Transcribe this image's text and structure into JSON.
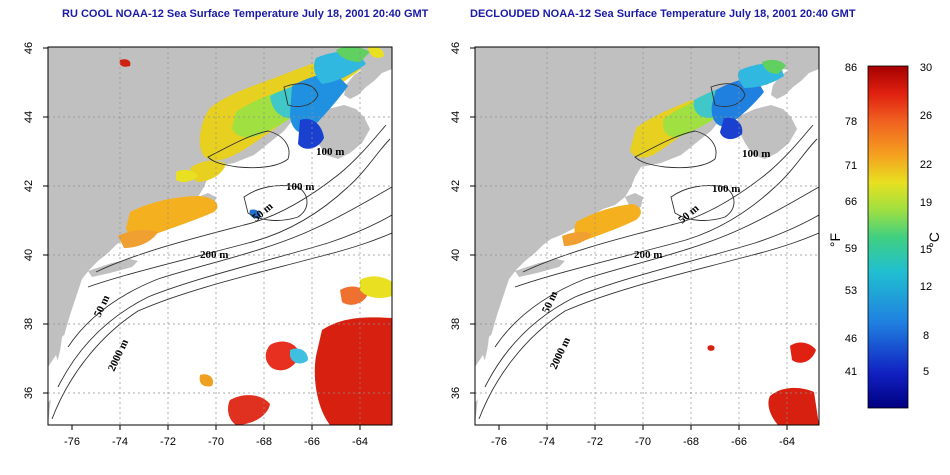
{
  "panels": [
    {
      "title": "RU COOL NOAA-12 Sea Surface Temperature July 18, 2001 20:40 GMT",
      "contour_labels": [
        "100 m",
        "100 m",
        "50 m",
        "200 m",
        "50 m",
        "2000 m"
      ]
    },
    {
      "title": "DECLOUDED NOAA-12 Sea Surface Temperature July 18, 2001 20:40 GMT",
      "contour_labels": [
        "100 m",
        "100 m",
        "50 m",
        "200 m",
        "50 m",
        "2000 m"
      ]
    }
  ],
  "axes": {
    "x_ticks": [
      "-76",
      "-74",
      "-72",
      "-70",
      "-68",
      "-66",
      "-64"
    ],
    "y_ticks": [
      "46",
      "44",
      "42",
      "40",
      "38",
      "36"
    ],
    "xlim": [
      -77.2,
      -63.0
    ],
    "ylim": [
      35.0,
      46.0
    ],
    "grid": "dotted"
  },
  "colorbar": {
    "fahrenheit_ticks": [
      "86",
      "78",
      "71",
      "66",
      "59",
      "53",
      "46",
      "41"
    ],
    "celsius_ticks": [
      "30",
      "26",
      "22",
      "19",
      "15",
      "12",
      "8",
      "5"
    ],
    "fahrenheit_unit": "°F",
    "celsius_unit": "°C",
    "colors": [
      "#a50000",
      "#e02010",
      "#f06020",
      "#f5a020",
      "#e8e020",
      "#a0e040",
      "#40d080",
      "#20c0d0",
      "#2080e0",
      "#1020c0",
      "#000080"
    ]
  },
  "colors": {
    "land": "#c0c0c0",
    "ocean": "#ffffff",
    "title": "#1a1aa6"
  }
}
